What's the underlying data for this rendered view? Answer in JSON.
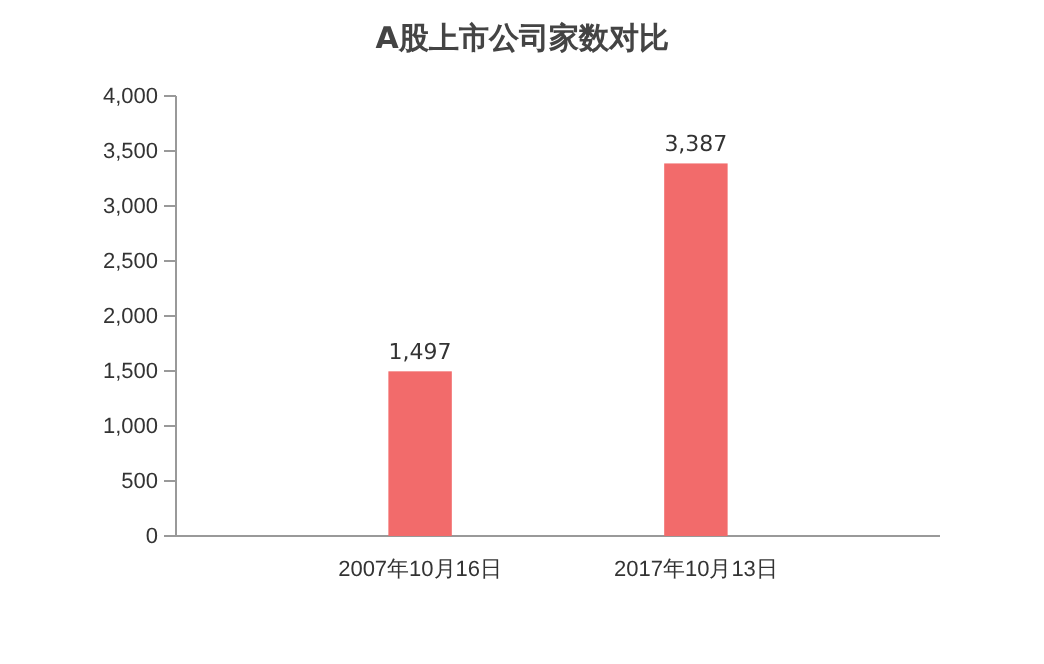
{
  "chart_data": {
    "type": "bar",
    "title": "A股上市公司家数对比",
    "categories": [
      "2007年10月16日",
      "2017年10月13日"
    ],
    "values": [
      1497,
      3387
    ],
    "color": "#f26b6b",
    "ylim": [
      0,
      4000
    ],
    "yticks": [
      0,
      {
        "value": 500,
        "label": "500"
      },
      {
        "value": 1000,
        "label": "1,000"
      },
      {
        "value": 1500,
        "label": "1,500"
      },
      {
        "value": 2000,
        "label": "2,000"
      },
      {
        "value": 2500,
        "label": "2,500"
      },
      {
        "value": 3000,
        "label": "3,000"
      },
      {
        "value": 3500,
        "label": "3,500"
      },
      {
        "value": 4000,
        "label": "4,000"
      }
    ],
    "value_labels": [
      "1,497",
      "3,387"
    ],
    "grid": false
  }
}
